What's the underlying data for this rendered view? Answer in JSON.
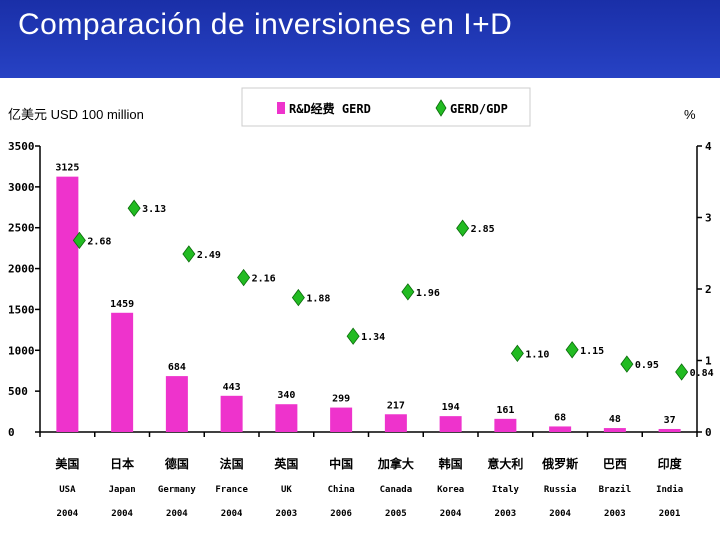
{
  "title": "Comparación de inversiones en I+D",
  "chart_data": {
    "type": "bar+line",
    "left_axis_label": "亿美元 USD 100 million",
    "right_axis_label": "%",
    "ylim_left": [
      0,
      3500
    ],
    "ylim_right": [
      0,
      4
    ],
    "left_ticks": [
      0,
      500,
      1000,
      1500,
      2000,
      2500,
      3000,
      3500
    ],
    "right_ticks": [
      0,
      1,
      2,
      3,
      4
    ],
    "legend": [
      {
        "label": "R&D经费  GERD",
        "color": "#ee33cc",
        "marker": "square"
      },
      {
        "label": "GERD/GDP",
        "color": "#22bb22",
        "marker": "diamond"
      }
    ],
    "categories": [
      {
        "zh": "美国",
        "en": "USA",
        "year": "2004"
      },
      {
        "zh": "日本",
        "en": "Japan",
        "year": "2004"
      },
      {
        "zh": "德国",
        "en": "Germany",
        "year": "2004"
      },
      {
        "zh": "法国",
        "en": "France",
        "year": "2004"
      },
      {
        "zh": "英国",
        "en": "UK",
        "year": "2003"
      },
      {
        "zh": "中国",
        "en": "China",
        "year": "2006"
      },
      {
        "zh": "加拿大",
        "en": "Canada",
        "year": "2005"
      },
      {
        "zh": "韩国",
        "en": "Korea",
        "year": "2004"
      },
      {
        "zh": "意大利",
        "en": "Italy",
        "year": "2003"
      },
      {
        "zh": "俄罗斯",
        "en": "Russia",
        "year": "2004"
      },
      {
        "zh": "巴西",
        "en": "Brazil",
        "year": "2003"
      },
      {
        "zh": "印度",
        "en": "India",
        "year": "2001"
      }
    ],
    "series": [
      {
        "name": "GERD",
        "axis": "left",
        "kind": "bar",
        "values": [
          3125,
          1459,
          684,
          443,
          340,
          299,
          217,
          194,
          161,
          68,
          48,
          37
        ],
        "labels": [
          "3125",
          "1459",
          "684",
          "443",
          "340",
          "299",
          "217",
          "194",
          "161",
          "68",
          "48",
          "37"
        ]
      },
      {
        "name": "GERD/GDP",
        "axis": "right",
        "kind": "point",
        "values": [
          2.68,
          3.13,
          2.49,
          2.16,
          1.88,
          1.34,
          1.96,
          2.85,
          1.1,
          1.15,
          0.95,
          0.84
        ],
        "labels": [
          "2.68",
          "3.13",
          "2.49",
          "2.16",
          "1.88",
          "1.34",
          "1.96",
          "2.85",
          "1.10",
          "1.15",
          "0.95",
          "0.84"
        ]
      }
    ]
  }
}
